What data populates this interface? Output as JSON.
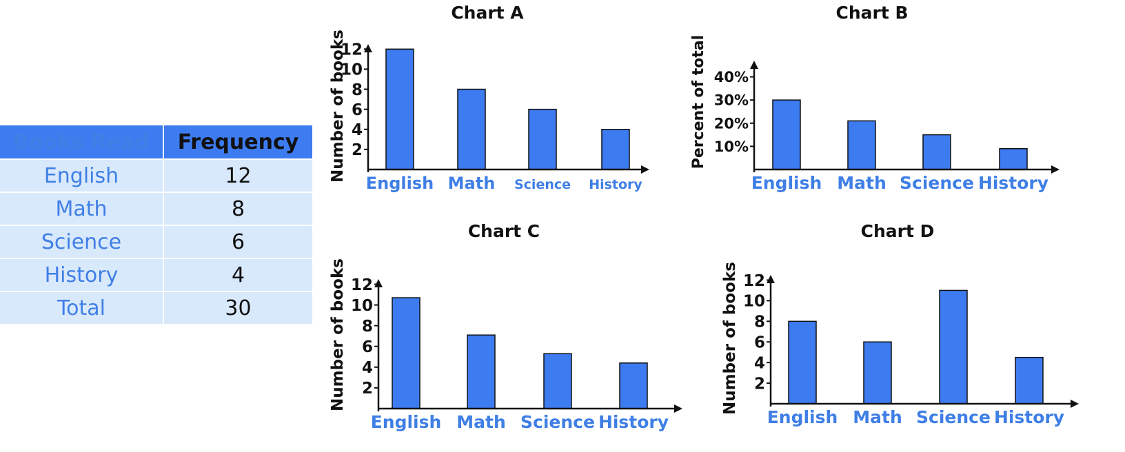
{
  "table": {
    "headers": [
      "Books Read",
      "Frequency"
    ],
    "rows": [
      {
        "category": "English",
        "value": "12"
      },
      {
        "category": "Math",
        "value": "8"
      },
      {
        "category": "Science",
        "value": "6"
      },
      {
        "category": "History",
        "value": "4"
      },
      {
        "category": "Total",
        "value": "30"
      }
    ]
  },
  "colors": {
    "bar": "#3d7bf0",
    "category_text": "#3f7fe6",
    "table_header": "#3d7bf0",
    "table_cell": "#d9e9fc"
  },
  "chart_data": [
    {
      "type": "bar",
      "title": "Chart A",
      "categories": [
        "English",
        "Math",
        "Science",
        "History"
      ],
      "values": [
        12,
        8,
        6,
        4
      ],
      "ylabel": "Number of books",
      "xlabel": "",
      "yticks": [
        2,
        4,
        6,
        8,
        10,
        12
      ],
      "ytick_labels": [
        "2",
        "4",
        "6",
        "8",
        "10",
        "12"
      ],
      "ylim": [
        0,
        12.5
      ],
      "grid": false
    },
    {
      "type": "bar",
      "title": "Chart B",
      "categories": [
        "English",
        "Math",
        "Science",
        "History"
      ],
      "values": [
        30,
        21,
        15,
        9
      ],
      "ylabel": "Percent of total",
      "xlabel": "",
      "yticks": [
        10,
        20,
        30,
        40
      ],
      "ytick_labels": [
        "10%",
        "20%",
        "30%",
        "40%"
      ],
      "ylim": [
        0,
        47
      ],
      "grid": false
    },
    {
      "type": "bar",
      "title": "Chart C",
      "categories": [
        "English",
        "Math",
        "Science",
        "History"
      ],
      "values": [
        10.7,
        7.1,
        5.3,
        4.4
      ],
      "ylabel": "Number of books",
      "xlabel": "",
      "yticks": [
        2,
        4,
        6,
        8,
        10,
        12
      ],
      "ytick_labels": [
        "2",
        "4",
        "6",
        "8",
        "10",
        "12"
      ],
      "ylim": [
        0,
        12.5
      ],
      "grid": false
    },
    {
      "type": "bar",
      "title": "Chart D",
      "categories": [
        "English",
        "Math",
        "Science",
        "History"
      ],
      "values": [
        8,
        6,
        11,
        4.5
      ],
      "ylabel": "Number of books",
      "xlabel": "",
      "yticks": [
        2,
        4,
        6,
        8,
        10,
        12
      ],
      "ytick_labels": [
        "2",
        "4",
        "6",
        "8",
        "10",
        "12"
      ],
      "ylim": [
        0,
        12.5
      ],
      "grid": false
    }
  ]
}
